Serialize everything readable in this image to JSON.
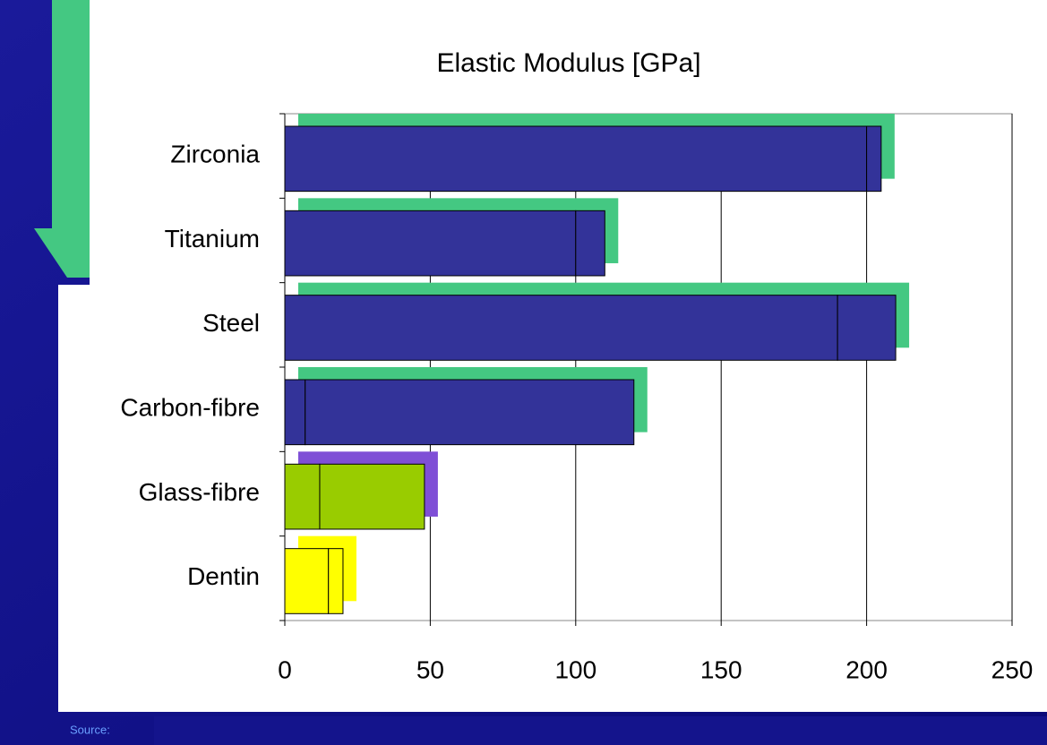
{
  "chart_data": {
    "type": "bar",
    "orientation": "horizontal",
    "stacked": true,
    "title": "Elastic Modulus [GPa]",
    "categories": [
      "Zirconia",
      "Titanium",
      "Steel",
      "Carbon-fibre",
      "Glass-fibre",
      "Dentin"
    ],
    "series": [
      {
        "values": [
          200,
          100,
          190,
          7,
          12,
          15
        ]
      },
      {
        "values": [
          5,
          10,
          20,
          113,
          36,
          5
        ]
      }
    ],
    "colors": [
      "#333399",
      "#333399",
      "#333399",
      "#333399",
      "#99cc00",
      "#ffff00"
    ],
    "shadow_colors": [
      "#44c882",
      "#44c882",
      "#44c882",
      "#44c882",
      "#7f4fd6",
      "#ffff00"
    ],
    "xlim": [
      0,
      250
    ],
    "xticks": [
      0,
      50,
      100,
      150,
      200,
      250
    ],
    "grid": true
  },
  "footer": {
    "source": "Source:"
  }
}
